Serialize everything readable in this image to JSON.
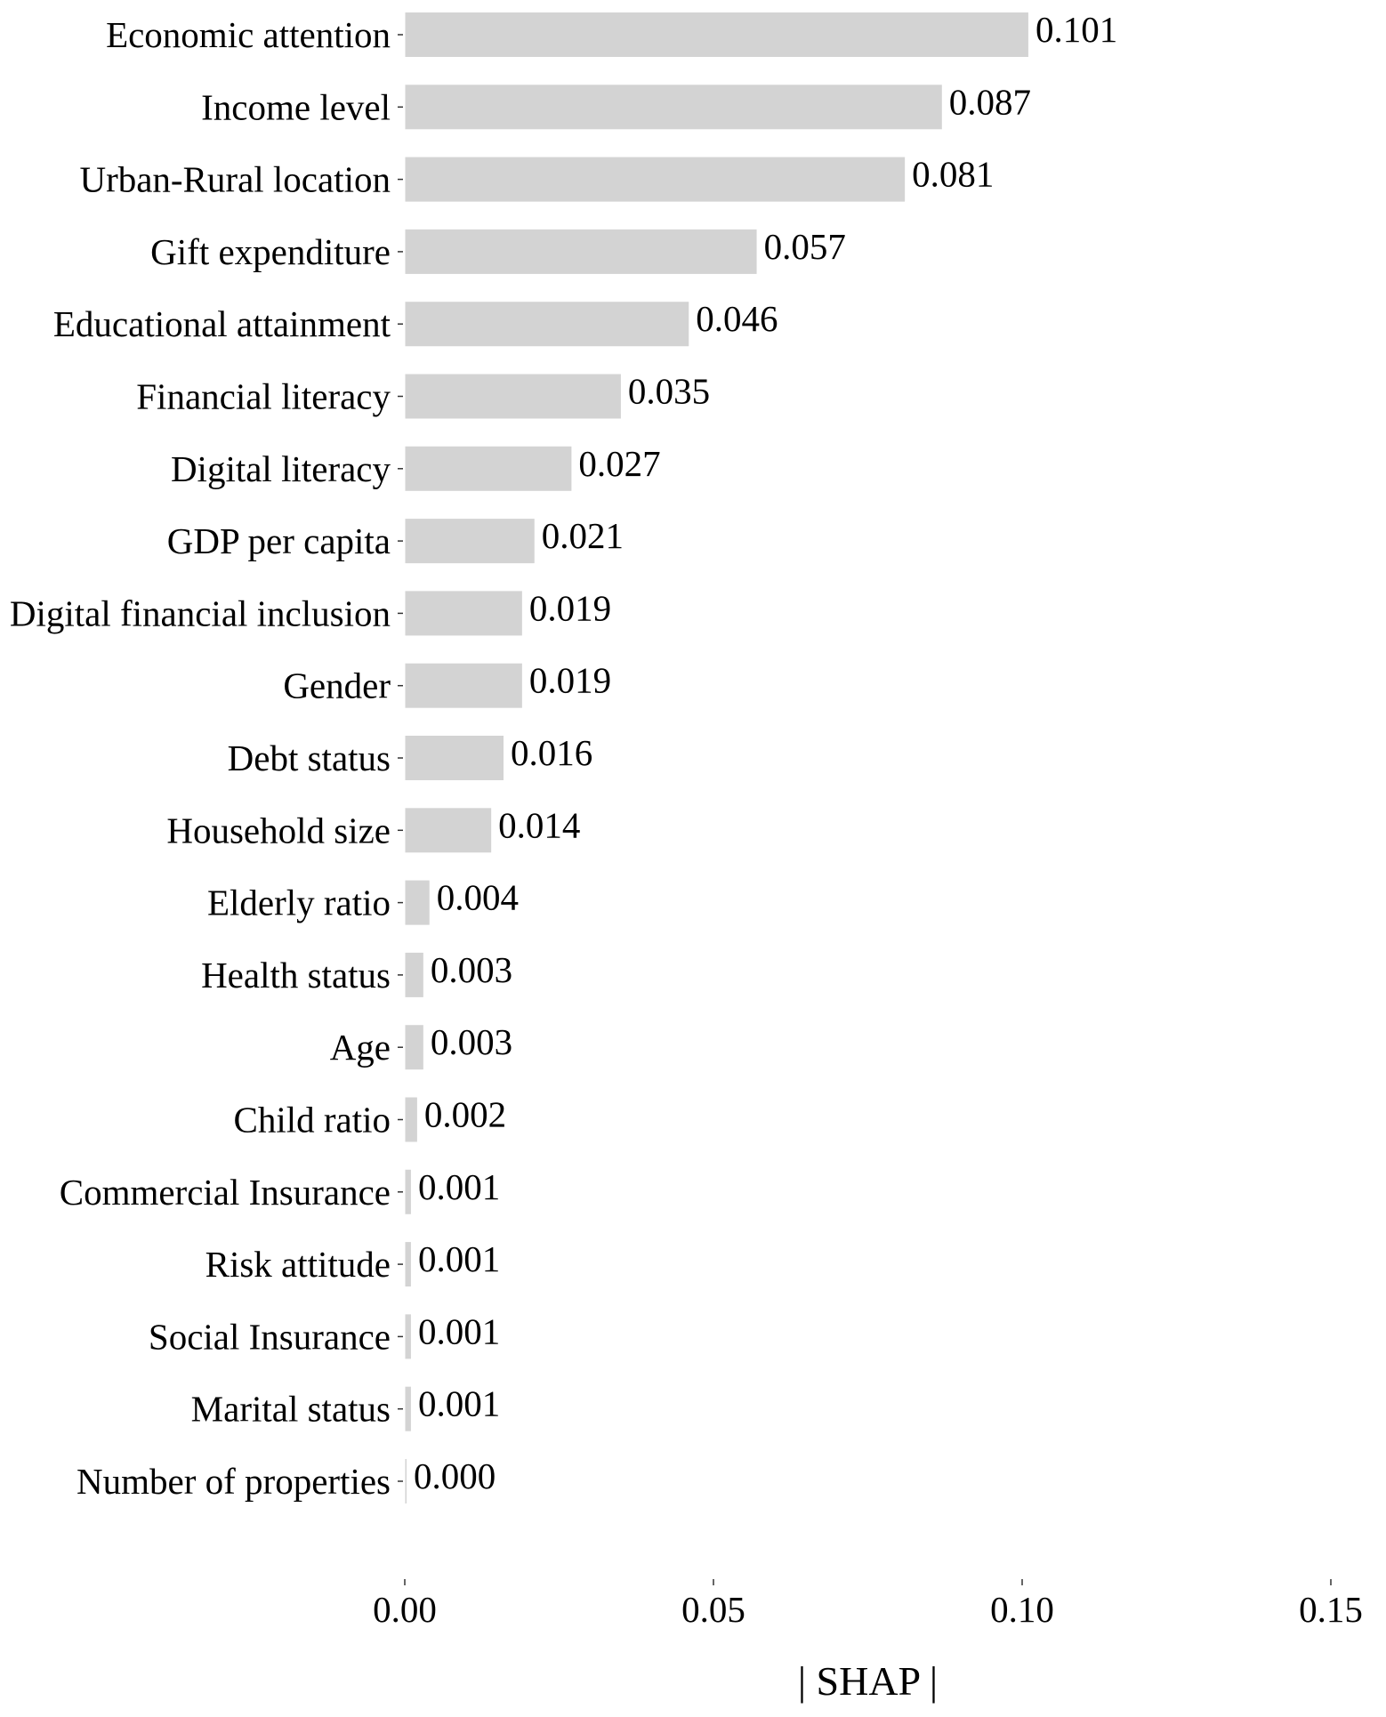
{
  "chart_data": {
    "type": "bar",
    "orientation": "horizontal",
    "categories": [
      "Economic attention",
      "Income level",
      "Urban-Rural location",
      "Gift expenditure",
      "Educational attainment",
      "Financial literacy",
      "Digital literacy",
      "GDP per capita",
      "Digital financial inclusion",
      "Gender",
      "Debt status",
      "Household size",
      "Elderly ratio",
      "Health status",
      "Age",
      "Child ratio",
      "Commercial Insurance",
      "Risk attitude",
      "Social Insurance",
      "Marital status",
      "Number of properties"
    ],
    "values": [
      0.101,
      0.087,
      0.081,
      0.057,
      0.046,
      0.035,
      0.027,
      0.021,
      0.019,
      0.019,
      0.016,
      0.014,
      0.004,
      0.003,
      0.003,
      0.002,
      0.001,
      0.001,
      0.001,
      0.001,
      0.0
    ],
    "value_labels": [
      "0.101",
      "0.087",
      "0.081",
      "0.057",
      "0.046",
      "0.035",
      "0.027",
      "0.021",
      "0.019",
      "0.019",
      "0.016",
      "0.014",
      "0.004",
      "0.003",
      "0.003",
      "0.002",
      "0.001",
      "0.001",
      "0.001",
      "0.001",
      "0.000"
    ],
    "xticks": [
      0.0,
      0.05,
      0.1,
      0.15
    ],
    "xtick_labels": [
      "0.00",
      "0.05",
      "0.10",
      "0.15"
    ],
    "xlabel": "| SHAP |",
    "ylabel": "",
    "title": "",
    "xlim": [
      0,
      0.15
    ],
    "grid": false,
    "legend": "none",
    "bar_color": "#d3d3d3"
  }
}
